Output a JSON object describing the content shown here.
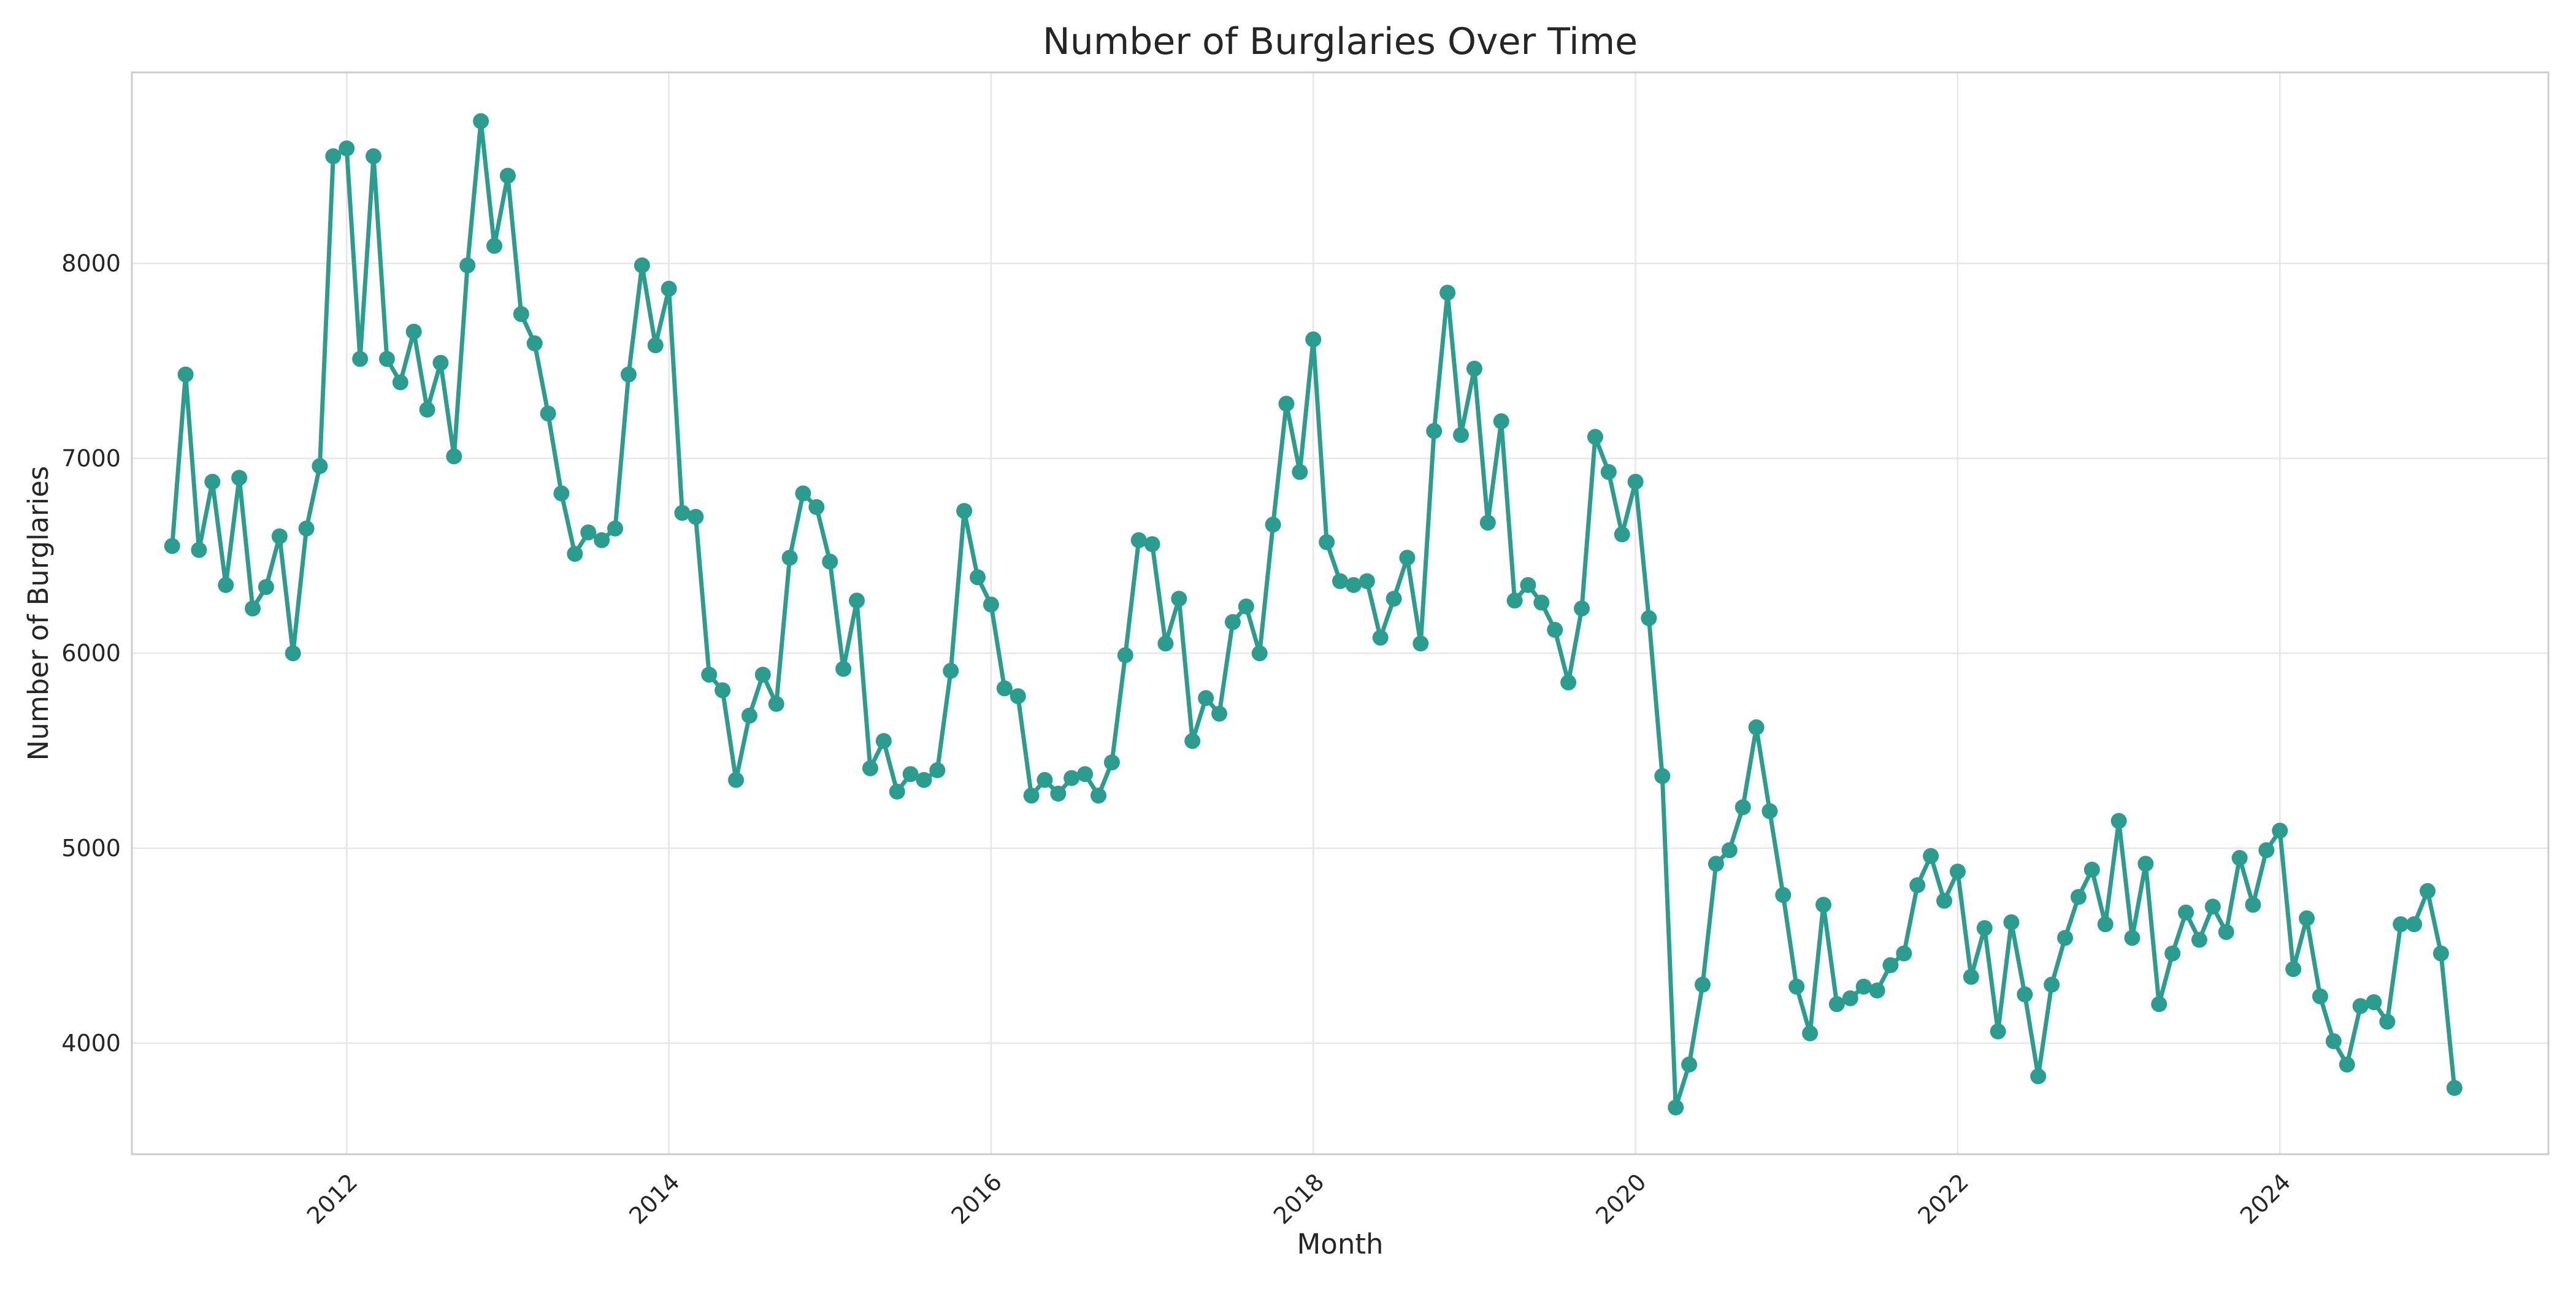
{
  "chart_data": {
    "type": "line",
    "title": "Number of Burglaries Over Time",
    "xlabel": "Month",
    "ylabel": "Number of Burglaries",
    "grid": true,
    "legend": "none",
    "color": "#2a9d8f",
    "xlim": [
      "2010-09",
      "2025-09"
    ],
    "ylim": [
      3430,
      8980
    ],
    "x_ticks": [
      "2012",
      "2014",
      "2016",
      "2018",
      "2020",
      "2022",
      "2024"
    ],
    "y_ticks": [
      4000,
      5000,
      6000,
      7000,
      8000
    ],
    "x": [
      "2010-12",
      "2011-01",
      "2011-02",
      "2011-03",
      "2011-04",
      "2011-05",
      "2011-06",
      "2011-07",
      "2011-08",
      "2011-09",
      "2011-10",
      "2011-11",
      "2011-12",
      "2012-01",
      "2012-02",
      "2012-03",
      "2012-04",
      "2012-05",
      "2012-06",
      "2012-07",
      "2012-08",
      "2012-09",
      "2012-10",
      "2012-11",
      "2012-12",
      "2013-01",
      "2013-02",
      "2013-03",
      "2013-04",
      "2013-05",
      "2013-06",
      "2013-07",
      "2013-08",
      "2013-09",
      "2013-10",
      "2013-11",
      "2013-12",
      "2014-01",
      "2014-02",
      "2014-03",
      "2014-04",
      "2014-05",
      "2014-06",
      "2014-07",
      "2014-08",
      "2014-09",
      "2014-10",
      "2014-11",
      "2014-12",
      "2015-01",
      "2015-02",
      "2015-03",
      "2015-04",
      "2015-05",
      "2015-06",
      "2015-07",
      "2015-08",
      "2015-09",
      "2015-10",
      "2015-11",
      "2015-12",
      "2016-01",
      "2016-02",
      "2016-03",
      "2016-04",
      "2016-05",
      "2016-06",
      "2016-07",
      "2016-08",
      "2016-09",
      "2016-10",
      "2016-11",
      "2016-12",
      "2017-01",
      "2017-02",
      "2017-03",
      "2017-04",
      "2017-05",
      "2017-06",
      "2017-07",
      "2017-08",
      "2017-09",
      "2017-10",
      "2017-11",
      "2017-12",
      "2018-01",
      "2018-02",
      "2018-03",
      "2018-04",
      "2018-05",
      "2018-06",
      "2018-07",
      "2018-08",
      "2018-09",
      "2018-10",
      "2018-11",
      "2018-12",
      "2019-01",
      "2019-02",
      "2019-03",
      "2019-04",
      "2019-05",
      "2019-06",
      "2019-07",
      "2019-08",
      "2019-09",
      "2019-10",
      "2019-11",
      "2019-12",
      "2020-01",
      "2020-02",
      "2020-03",
      "2020-04",
      "2020-05",
      "2020-06",
      "2020-07",
      "2020-08",
      "2020-09",
      "2020-10",
      "2020-11",
      "2020-12",
      "2021-01",
      "2021-02",
      "2021-03",
      "2021-04",
      "2021-05",
      "2021-06",
      "2021-07",
      "2021-08",
      "2021-09",
      "2021-10",
      "2021-11",
      "2021-12",
      "2022-01",
      "2022-02",
      "2022-03",
      "2022-04",
      "2022-05",
      "2022-06",
      "2022-07",
      "2022-08",
      "2022-09",
      "2022-10",
      "2022-11",
      "2022-12",
      "2023-01",
      "2023-02",
      "2023-03",
      "2023-04",
      "2023-05",
      "2023-06",
      "2023-07",
      "2023-08",
      "2023-09",
      "2023-10",
      "2023-11",
      "2023-12",
      "2024-01",
      "2024-02",
      "2024-03",
      "2024-04",
      "2024-05",
      "2024-06",
      "2024-07",
      "2024-08",
      "2024-09",
      "2024-10",
      "2024-11",
      "2024-12",
      "2025-01",
      "2025-02"
    ],
    "values": [
      6550,
      7430,
      6530,
      6880,
      6350,
      6900,
      6230,
      6340,
      6600,
      6000,
      6640,
      6960,
      8550,
      8590,
      7510,
      8550,
      7510,
      7390,
      7650,
      7250,
      7490,
      7010,
      7990,
      8730,
      8090,
      8450,
      7740,
      7590,
      7230,
      6820,
      6510,
      6620,
      6580,
      6640,
      7430,
      7990,
      7580,
      7870,
      6720,
      6700,
      5890,
      5810,
      5350,
      5680,
      5890,
      5740,
      6490,
      6820,
      6750,
      6470,
      5920,
      6270,
      5410,
      5550,
      5290,
      5380,
      5350,
      5400,
      5910,
      6730,
      6390,
      6250,
      5820,
      5780,
      5270,
      5350,
      5280,
      5360,
      5380,
      5270,
      5440,
      5990,
      6580,
      6560,
      6050,
      6280,
      5550,
      5770,
      5690,
      6160,
      6240,
      6000,
      6660,
      7280,
      6930,
      7610,
      6570,
      6370,
      6350,
      6370,
      6080,
      6280,
      6490,
      6050,
      7140,
      7850,
      7120,
      7460,
      6670,
      7190,
      6270,
      6350,
      6260,
      6120,
      5850,
      6230,
      7110,
      6930,
      6610,
      6880,
      6180,
      5370,
      3670,
      3890,
      4300,
      4920,
      4990,
      5210,
      5620,
      5190,
      4760,
      4290,
      4050,
      4710,
      4200,
      4230,
      4290,
      4270,
      4400,
      4460,
      4810,
      4960,
      4730,
      4880,
      4340,
      4590,
      4060,
      4620,
      4250,
      3830,
      4300,
      4540,
      4750,
      4890,
      4610,
      5140,
      4540,
      4920,
      4200,
      4460,
      4670,
      4530,
      4700,
      4570,
      4950,
      4710,
      4990,
      5090,
      4380,
      4640,
      4240,
      4010,
      3890,
      4190,
      4210,
      4110,
      4610,
      4610,
      4780,
      4460,
      3770
    ]
  }
}
